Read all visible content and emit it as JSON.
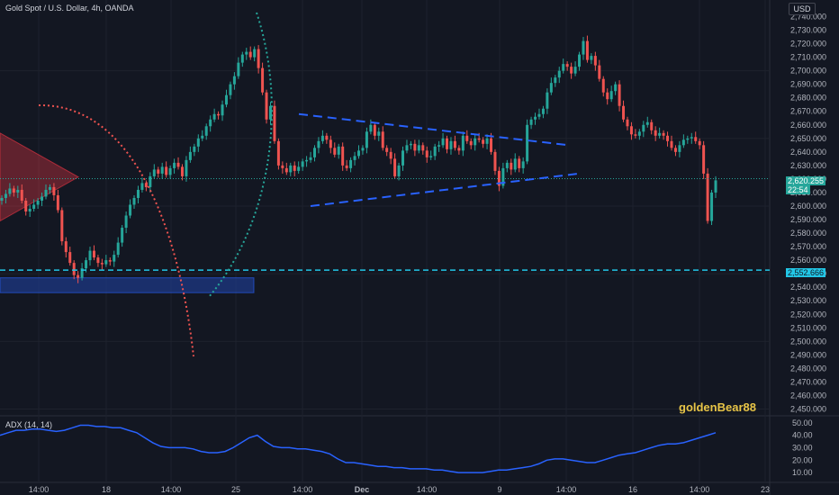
{
  "header": {
    "title": "Gold Spot / U.S. Dollar, 4h, OANDA",
    "currency": "USD",
    "watermark": "goldenBear88",
    "indicator_label": "ADX (14, 14)"
  },
  "price_tags": {
    "last_price": "2,620.255",
    "countdown": "22:54",
    "level": "2,552.666"
  },
  "colors": {
    "background": "#131722",
    "up": "#26a69a",
    "down": "#ef5350",
    "level_line": "#22c6e6",
    "adx_line": "#2962ff",
    "dashed_channel": "#2962ff",
    "red_arc": "#ef5350",
    "green_arc": "#26a69a",
    "zone_red": "#f23645",
    "zone_blue": "#1e3a8a"
  },
  "chart_data": [
    {
      "type": "candlestick",
      "title": "Gold Spot / U.S. Dollar, 4h, OANDA",
      "y_ticks": [
        "2,740.000",
        "2,730.000",
        "2,720.000",
        "2,710.000",
        "2,700.000",
        "2,690.000",
        "2,680.000",
        "2,670.000",
        "2,660.000",
        "2,650.000",
        "2,640.000",
        "2,630.000",
        "2,620.000",
        "2,610.000",
        "2,600.000",
        "2,590.000",
        "2,580.000",
        "2,570.000",
        "2,560.000",
        "2,550.000",
        "2,540.000",
        "2,530.000",
        "2,520.000",
        "2,510.000",
        "2,500.000",
        "2,490.000",
        "2,480.000",
        "2,470.000",
        "2,460.000",
        "2,450.000"
      ],
      "ylim": [
        2447,
        2741
      ],
      "x_ticks": [
        "14:00",
        "18",
        "14:00",
        "25",
        "14:00",
        "Dec",
        "14:00",
        "9",
        "14:00",
        "16",
        "14:00",
        "23"
      ],
      "horizontal_level": 2552.666,
      "last_price": 2620.255,
      "closes": [
        2606,
        2609,
        2613,
        2610,
        2612,
        2604,
        2596,
        2598,
        2601,
        2604,
        2607,
        2612,
        2614,
        2608,
        2597,
        2574,
        2566,
        2558,
        2549,
        2547,
        2554,
        2560,
        2567,
        2562,
        2558,
        2557,
        2560,
        2559,
        2564,
        2573,
        2584,
        2593,
        2601,
        2606,
        2612,
        2617,
        2614,
        2622,
        2627,
        2624,
        2629,
        2623,
        2628,
        2632,
        2629,
        2622,
        2634,
        2640,
        2644,
        2650,
        2652,
        2659,
        2664,
        2668,
        2667,
        2675,
        2682,
        2690,
        2696,
        2706,
        2712,
        2714,
        2710,
        2716,
        2702,
        2684,
        2664,
        2674,
        2648,
        2630,
        2628,
        2625,
        2630,
        2626,
        2629,
        2633,
        2634,
        2636,
        2643,
        2648,
        2652,
        2649,
        2643,
        2638,
        2644,
        2630,
        2628,
        2634,
        2637,
        2641,
        2643,
        2655,
        2660,
        2652,
        2655,
        2643,
        2640,
        2635,
        2622,
        2630,
        2641,
        2645,
        2646,
        2641,
        2645,
        2641,
        2636,
        2637,
        2644,
        2645,
        2650,
        2642,
        2648,
        2643,
        2641,
        2652,
        2648,
        2645,
        2650,
        2649,
        2646,
        2650,
        2640,
        2626,
        2615,
        2628,
        2632,
        2627,
        2635,
        2628,
        2633,
        2660,
        2664,
        2666,
        2668,
        2672,
        2684,
        2691,
        2695,
        2700,
        2705,
        2703,
        2698,
        2703,
        2712,
        2722,
        2708,
        2711,
        2704,
        2694,
        2684,
        2679,
        2685,
        2690,
        2674,
        2664,
        2659,
        2653,
        2652,
        2655,
        2660,
        2662,
        2656,
        2652,
        2654,
        2652,
        2648,
        2643,
        2640,
        2645,
        2649,
        2650,
        2651,
        2648,
        2645,
        2624,
        2589,
        2610,
        2619
      ],
      "annotations": [
        {
          "type": "red_zone",
          "x": [
            0,
            87
          ],
          "y": [
            2589,
            2654
          ]
        },
        {
          "type": "blue_zone",
          "x": [
            0,
            282
          ],
          "y": [
            2536,
            2547
          ]
        },
        {
          "type": "dashed_channel_upper",
          "from": [
            332,
            2668
          ],
          "to": [
            632,
            2645
          ]
        },
        {
          "type": "dashed_channel_lower",
          "from": [
            345,
            2600
          ],
          "to": [
            643,
            2624
          ]
        },
        {
          "type": "dashed_channel_mid",
          "from": [
            560,
            2646
          ],
          "to": [
            560,
            2646
          ]
        }
      ]
    },
    {
      "type": "line",
      "title": "ADX (14, 14)",
      "y_ticks": [
        "50.00",
        "40.00",
        "30.00",
        "20.00",
        "10.00"
      ],
      "ylim": [
        5,
        52
      ],
      "series": [
        {
          "values": [
            40,
            42,
            44,
            44,
            45,
            45,
            44,
            43,
            44,
            46,
            48,
            48,
            47,
            47,
            46,
            46,
            44,
            42,
            38,
            34,
            31,
            30,
            30,
            30,
            29,
            27,
            26,
            26,
            27,
            30,
            34,
            38,
            40,
            35,
            31,
            30,
            30,
            29,
            29,
            28,
            27,
            25,
            21,
            18,
            18,
            17,
            16,
            15,
            15,
            14,
            14,
            13,
            13,
            13,
            12,
            12,
            11,
            10,
            10,
            10,
            10,
            11,
            12,
            12,
            13,
            14,
            15,
            17,
            20,
            21,
            21,
            20,
            19,
            18,
            18,
            20,
            22,
            24,
            25,
            26,
            28,
            30,
            32,
            33,
            33,
            34,
            36,
            38,
            40,
            42
          ]
        }
      ]
    }
  ]
}
